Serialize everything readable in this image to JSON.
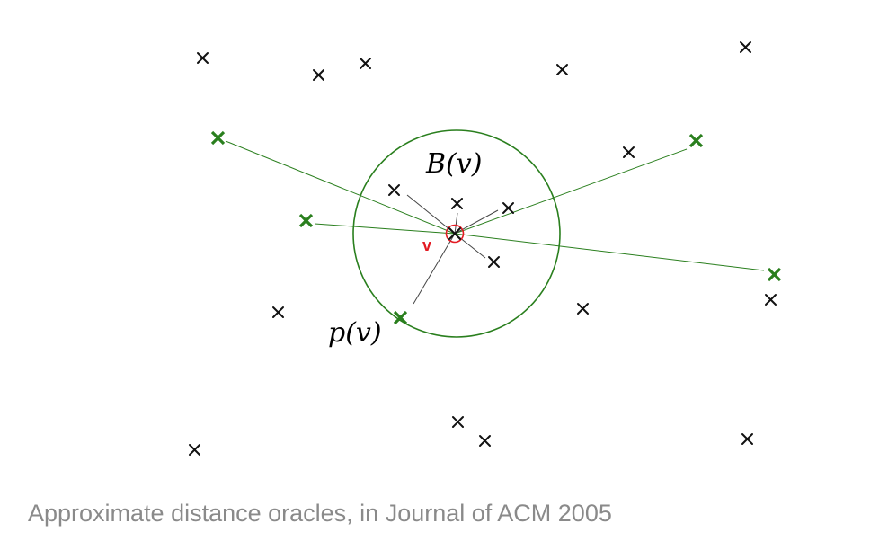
{
  "labels": {
    "ball": "B(v)",
    "pivot": "p(v)",
    "vertex": "v"
  },
  "caption": "Approximate distance oracles, in Journal of ACM 2005",
  "colors": {
    "landmark": "#2a7f1e",
    "ball": "#2a7f1e",
    "vertex": "#e31b23",
    "point": "#111111",
    "edge": "#444444",
    "caption": "#8a8a8a"
  }
}
